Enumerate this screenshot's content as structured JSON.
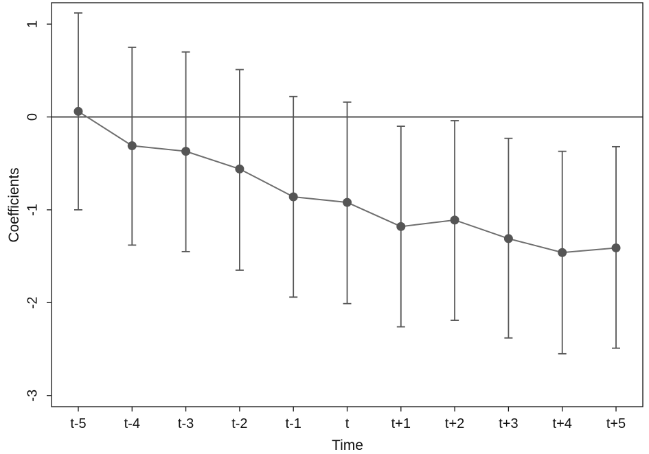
{
  "chart_data": {
    "type": "line",
    "title": "",
    "xlabel": "Time",
    "ylabel": "Coefficients",
    "categories": [
      "t-5",
      "t-4",
      "t-3",
      "t-2",
      "t-1",
      "t",
      "t+1",
      "t+2",
      "t+3",
      "t+4",
      "t+5"
    ],
    "series": [
      {
        "values": [
          0.06,
          -0.31,
          -0.37,
          -0.56,
          -0.86,
          -0.92,
          -1.18,
          -1.11,
          -1.31,
          -1.46,
          -1.41
        ],
        "ci_lower": [
          -1.0,
          -1.38,
          -1.45,
          -1.65,
          -1.94,
          -2.01,
          -2.26,
          -2.19,
          -2.38,
          -2.55,
          -2.49
        ],
        "ci_upper": [
          1.12,
          0.75,
          0.7,
          0.51,
          0.22,
          0.16,
          -0.1,
          -0.04,
          -0.23,
          -0.37,
          -0.32
        ]
      }
    ],
    "ylim": [
      -3.12,
      1.23
    ],
    "yticks": [
      1,
      0,
      -1,
      -2,
      -3
    ],
    "ytick_labels": [
      "1",
      "0",
      "-1",
      "-2",
      "-3"
    ],
    "reference_line_y": 0,
    "grid": false,
    "colors": {
      "line": "#6e6e6e",
      "marker": "#555555",
      "error_bar": "#555555",
      "reference_line": "#222222",
      "frame": "#111111"
    }
  }
}
